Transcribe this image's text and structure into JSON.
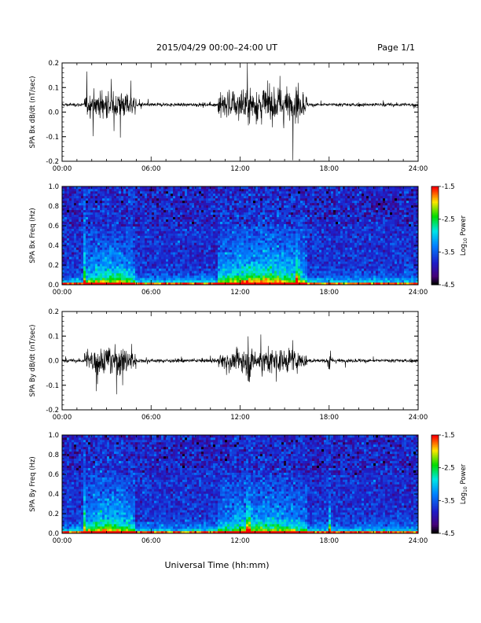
{
  "header": {
    "title": "2015/04/29   00:00–24:00 UT",
    "page": "Page 1/1"
  },
  "footer": {
    "xlabel": "Universal Time (hh:mm)"
  },
  "colorbar": {
    "label_main": "Log",
    "label_sub": "10",
    "label_tail": " Power",
    "ticks": [
      "-1.5",
      "-2.5",
      "-3.5",
      "-4.5"
    ],
    "range": [
      -4.5,
      -1.5
    ]
  },
  "colors": {
    "background": "#ffffff",
    "axis": "#000000"
  },
  "chart_data": [
    {
      "type": "line",
      "ylabel": "SPA Bx dB/dt (nT/sec)",
      "ylim": [
        -0.2,
        0.2
      ],
      "yticks": [
        "0.2",
        "0.1",
        "0.0",
        "-0.1",
        "-0.2"
      ],
      "xlim": [
        0,
        24
      ],
      "xticks": [
        "00:00",
        "06:00",
        "12:00",
        "18:00",
        "24:00"
      ],
      "baseline": 0.03,
      "activity": [
        {
          "start": 1.5,
          "end": 5.0,
          "amplitude": 0.08
        },
        {
          "start": 10.5,
          "end": 16.5,
          "amplitude": 0.1
        },
        {
          "start": 15.7,
          "end": 16.0,
          "amplitude": 0.15
        }
      ]
    },
    {
      "type": "heatmap",
      "ylabel": "SPA Bx Freq (Hz)",
      "ylim": [
        0,
        1
      ],
      "yticks": [
        "1.0",
        "0.8",
        "0.6",
        "0.4",
        "0.2",
        "0.0"
      ],
      "xlim": [
        0,
        24
      ],
      "xticks": [
        "00:00",
        "06:00",
        "12:00",
        "18:00",
        "24:00"
      ],
      "zlim": [
        -4.5,
        -1.5
      ]
    },
    {
      "type": "line",
      "ylabel": "SPA By dB/dt (nT/sec)",
      "ylim": [
        -0.2,
        0.2
      ],
      "yticks": [
        "0.2",
        "0.1",
        "0.0",
        "-0.1",
        "-0.2"
      ],
      "xlim": [
        0,
        24
      ],
      "xticks": [
        "00:00",
        "06:00",
        "12:00",
        "18:00",
        "24:00"
      ],
      "baseline": 0.0,
      "activity": [
        {
          "start": 1.5,
          "end": 5.0,
          "amplitude": 0.09
        },
        {
          "start": 10.5,
          "end": 16.5,
          "amplitude": 0.07
        },
        {
          "start": 12.4,
          "end": 12.7,
          "amplitude": 0.15
        },
        {
          "start": 17.9,
          "end": 18.1,
          "amplitude": 0.09
        }
      ]
    },
    {
      "type": "heatmap",
      "ylabel": "SPA By Freq (Hz)",
      "ylim": [
        0,
        1
      ],
      "yticks": [
        "1.0",
        "0.8",
        "0.6",
        "0.4",
        "0.2",
        "0.0"
      ],
      "xlim": [
        0,
        24
      ],
      "xticks": [
        "00:00",
        "06:00",
        "12:00",
        "18:00",
        "24:00"
      ],
      "zlim": [
        -4.5,
        -1.5
      ]
    }
  ]
}
